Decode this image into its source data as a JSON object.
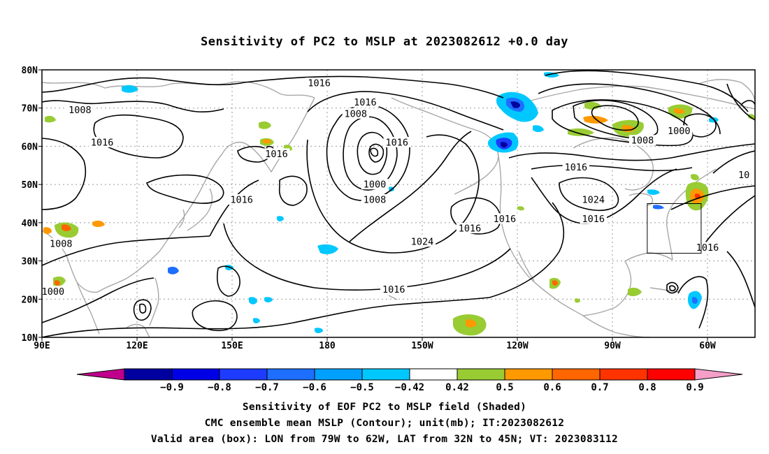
{
  "title": "Sensitivity of PC2 to MSLP at 2023082612 +0.0 day",
  "lat_labels": [
    "80N",
    "70N",
    "60N",
    "50N",
    "40N",
    "30N",
    "20N",
    "10N"
  ],
  "lon_labels": [
    "90E",
    "120E",
    "150E",
    "180",
    "150W",
    "120W",
    "90W",
    "60W"
  ],
  "contour_labels": [
    {
      "text": "1016",
      "lon": 177.5,
      "lat": 76.5
    },
    {
      "text": "1008",
      "lon": 102,
      "lat": 69.5
    },
    {
      "text": "1016",
      "lon": -168,
      "lat": 71.5
    },
    {
      "text": "1008",
      "lon": -171,
      "lat": 68.5
    },
    {
      "text": "1016",
      "lon": 109,
      "lat": 61
    },
    {
      "text": "1016",
      "lon": 164,
      "lat": 58
    },
    {
      "text": "1016",
      "lon": -158,
      "lat": 61
    },
    {
      "text": "1000",
      "lon": -165,
      "lat": 50
    },
    {
      "text": "1008",
      "lon": -165,
      "lat": 46
    },
    {
      "text": "1016",
      "lon": 153,
      "lat": 46
    },
    {
      "text": "1016",
      "lon": -135,
      "lat": 38.5
    },
    {
      "text": "1016",
      "lon": -124,
      "lat": 41
    },
    {
      "text": "1024",
      "lon": -150,
      "lat": 35
    },
    {
      "text": "1008",
      "lon": 96,
      "lat": 34.5
    },
    {
      "text": "1000",
      "lon": 93.5,
      "lat": 22
    },
    {
      "text": "1016",
      "lon": -159,
      "lat": 22.5
    },
    {
      "text": "1016",
      "lon": -101.5,
      "lat": 54.5
    },
    {
      "text": "1008",
      "lon": -80.5,
      "lat": 61.5
    },
    {
      "text": "1000",
      "lon": -69,
      "lat": 64
    },
    {
      "text": "1024",
      "lon": -96,
      "lat": 46
    },
    {
      "text": "1016",
      "lon": -96,
      "lat": 41
    },
    {
      "text": "1016",
      "lon": -60,
      "lat": 33.5
    },
    {
      "text": "10",
      "lon": -48.5,
      "lat": 52.5
    }
  ],
  "valid_box": {
    "lon_west": -79,
    "lon_east": -62,
    "lat_south": 32,
    "lat_north": 45
  },
  "colorbar": {
    "labels": [
      "-0.9",
      "-0.8",
      "-0.7",
      "-0.6",
      "-0.5",
      "-0.42",
      "0.42",
      "0.5",
      "0.6",
      "0.7",
      "0.8",
      "0.9"
    ],
    "low_extend_color": "#c0008c",
    "high_extend_color": "#f59ec8",
    "colors": [
      "#0000a0",
      "#0000e6",
      "#1e3cff",
      "#1e6eff",
      "#00a0ff",
      "#00c8ff",
      "#ffffff",
      "#99cc33",
      "#ff9900",
      "#ff6600",
      "#ff3300",
      "#ff0000"
    ]
  },
  "captions": {
    "line1": "Sensitivity of EOF PC2 to MSLP field (Shaded)",
    "line2": "CMC ensemble mean MSLP (Contour); unit(mb); IT:2023082612",
    "line3": "Valid area (box): LON from 79W to 62W, LAT from 32N to 45N; VT: 2023083112"
  }
}
